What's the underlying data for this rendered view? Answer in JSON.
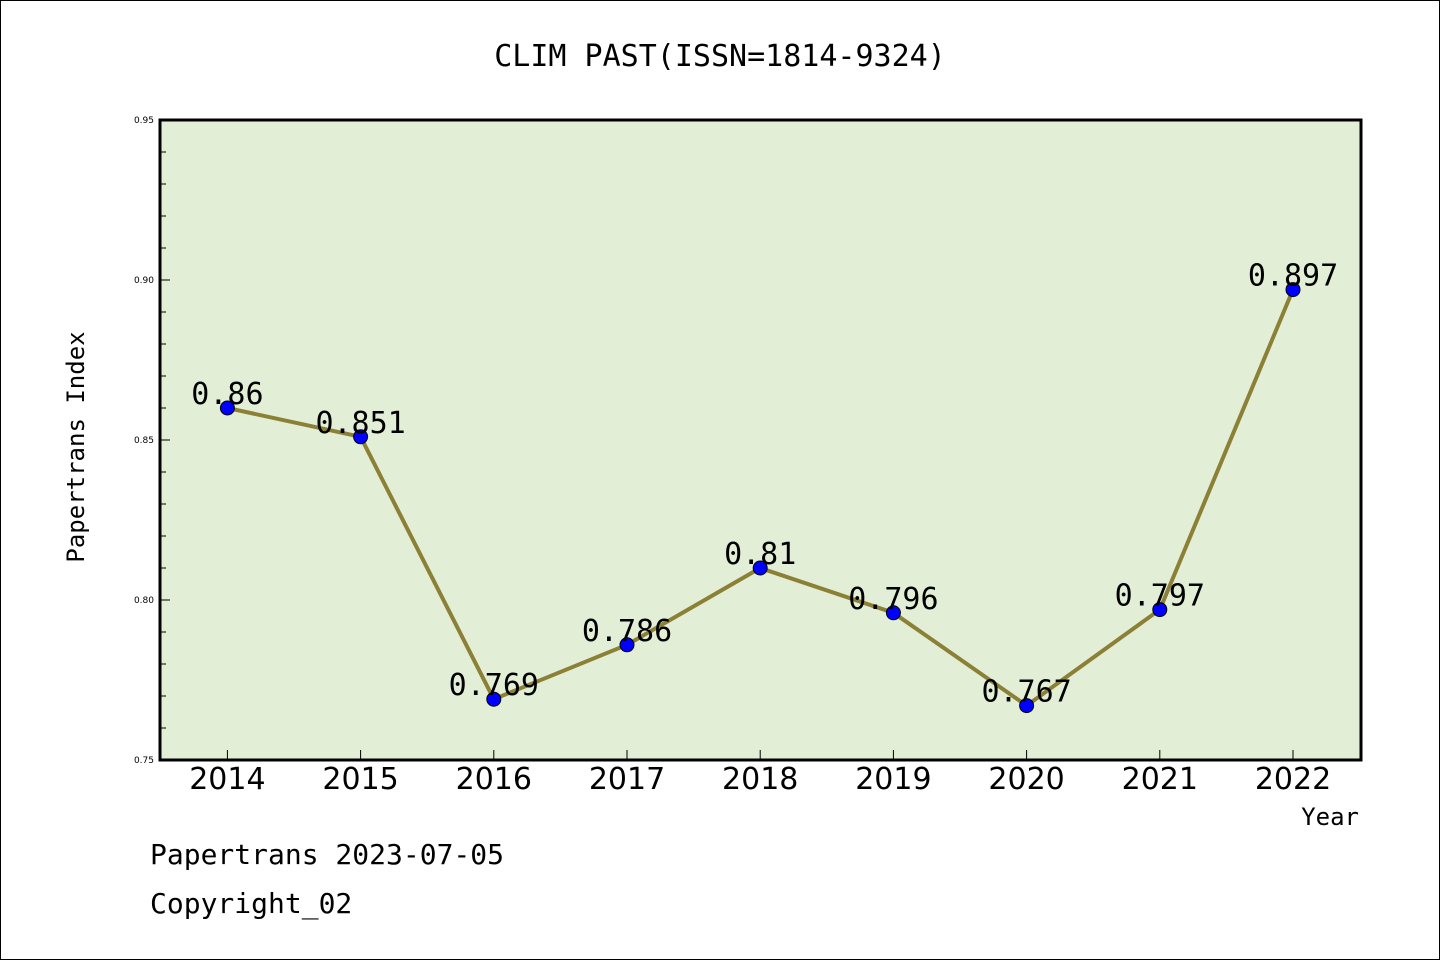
{
  "chart_data": {
    "type": "line",
    "title": "CLIM PAST(ISSN=1814-9324)",
    "xlabel": "Year",
    "ylabel": "Papertrans Index",
    "categories": [
      "2014",
      "2015",
      "2016",
      "2017",
      "2018",
      "2019",
      "2020",
      "2021",
      "2022"
    ],
    "values": [
      0.86,
      0.851,
      0.769,
      0.786,
      0.81,
      0.796,
      0.767,
      0.797,
      0.897
    ],
    "data_labels": [
      "0.86",
      "0.851",
      "0.769",
      "0.786",
      "0.81",
      "0.796",
      "0.767",
      "0.797",
      "0.897"
    ],
    "ylim": [
      0.75,
      0.95
    ],
    "yticks": [
      0.75,
      0.8,
      0.85,
      0.9,
      0.95
    ],
    "ytick_labels": [
      "0.75",
      "0.80",
      "0.85",
      "0.90",
      "0.95"
    ],
    "grid": false,
    "legend": "none",
    "colors": {
      "plot_background": "#e2efd6",
      "line": "#8b8035",
      "marker": "#0000ff"
    }
  },
  "footer": {
    "line1": "Papertrans 2023-07-05",
    "line2": "Copyright_02"
  }
}
